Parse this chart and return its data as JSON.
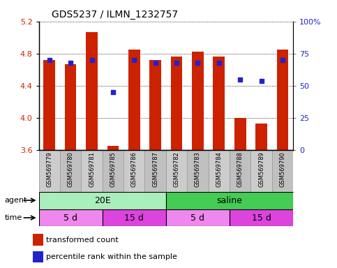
{
  "title": "GDS5237 / ILMN_1232757",
  "samples": [
    "GSM569779",
    "GSM569780",
    "GSM569781",
    "GSM569785",
    "GSM569786",
    "GSM569787",
    "GSM569782",
    "GSM569783",
    "GSM569784",
    "GSM569788",
    "GSM569789",
    "GSM569790"
  ],
  "transformed_counts": [
    4.72,
    4.67,
    5.07,
    3.65,
    4.85,
    4.72,
    4.76,
    4.82,
    4.76,
    4.0,
    3.93,
    4.85
  ],
  "percentile_ranks": [
    70,
    68,
    70,
    45,
    70,
    68,
    68,
    68,
    68,
    55,
    54,
    70
  ],
  "ymin": 3.6,
  "ymax": 5.2,
  "yticks": [
    3.6,
    4.0,
    4.4,
    4.8,
    5.2
  ],
  "right_yticks": [
    0,
    25,
    50,
    75,
    100
  ],
  "bar_color": "#cc2200",
  "dot_color": "#2222cc",
  "agent_20e_color": "#aaeebb",
  "agent_saline_color": "#44cc55",
  "time_5d_color": "#ee88ee",
  "time_15d_color": "#dd44dd",
  "agent_label_20e": "20E",
  "agent_label_saline": "saline",
  "legend_bar_label": "transformed count",
  "legend_dot_label": "percentile rank within the sample",
  "agent_row_label": "agent",
  "time_row_label": "time",
  "time_groups": [
    {
      "label": "5 d",
      "start": 0,
      "end": 2
    },
    {
      "label": "15 d",
      "start": 3,
      "end": 5
    },
    {
      "label": "5 d",
      "start": 6,
      "end": 8
    },
    {
      "label": "15 d",
      "start": 9,
      "end": 11
    }
  ]
}
